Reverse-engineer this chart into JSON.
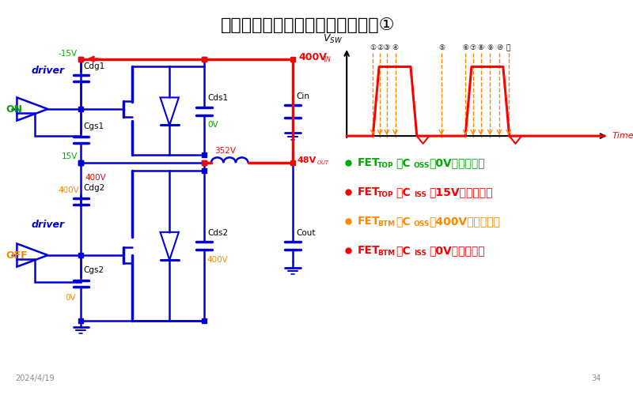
{
  "title": "降圧回路における寄生成分の影響①",
  "title_fontsize": 16,
  "bg_color": "#ffffff",
  "blue": "#0000dd",
  "red": "#ff0000",
  "green": "#00aa00",
  "orange": "#ff8800",
  "black": "#000000",
  "gray": "#888888",
  "date_text": "2024/4/19",
  "page_text": "34"
}
